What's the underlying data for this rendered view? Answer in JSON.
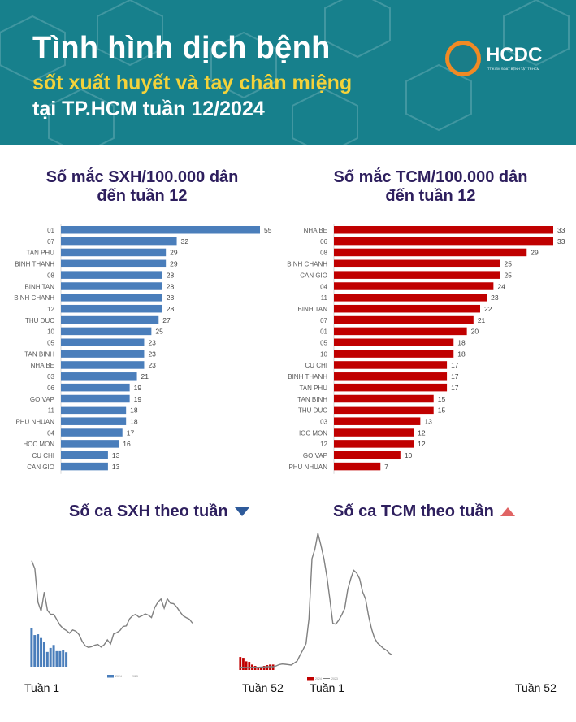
{
  "header": {
    "title": "Tình hình dịch bệnh",
    "subtitle": "sốt xuất huyết và tay chân miệng",
    "subtitle2": "tại TP.HCM tuần 12/2024",
    "logo_text": "HCDC",
    "logo_sub": "TT KIỂM SOÁT BỆNH TẬT TP.HCM"
  },
  "colors": {
    "header_bg": "#17808c",
    "sxh": "#4a7ebb",
    "tcm": "#c00000",
    "line_2023": "#808080",
    "title": "#2e1f5e",
    "yellow": "#f3d23a"
  },
  "sections": {
    "sxh_weekly": "Số ca SXH theo tuần",
    "tcm_weekly": "Số ca TCM theo tuần",
    "sxh_trend": "down",
    "tcm_trend": "up",
    "week_start": "Tuần 1",
    "week_end": "Tuần 52"
  },
  "chart_data": [
    {
      "type": "bar",
      "orientation": "horizontal",
      "title": "Số mắc SXH/100.000 dân",
      "subtitle": "đến tuần 12",
      "color": "#4a7ebb",
      "categories": [
        "01",
        "07",
        "TAN PHU",
        "BINH THANH",
        "08",
        "BINH TAN",
        "BINH CHANH",
        "12",
        "THU DUC",
        "10",
        "05",
        "TAN BINH",
        "NHA BE",
        "03",
        "06",
        "GO VAP",
        "11",
        "PHU NHUAN",
        "04",
        "HOC MON",
        "CU CHI",
        "CAN GIO"
      ],
      "values": [
        55,
        32,
        29,
        29,
        28,
        28,
        28,
        28,
        27,
        25,
        23,
        23,
        23,
        21,
        19,
        19,
        18,
        18,
        17,
        16,
        13,
        13
      ],
      "xlim": [
        0,
        55
      ]
    },
    {
      "type": "bar",
      "orientation": "horizontal",
      "title": "Số mắc TCM/100.000 dân",
      "subtitle": "đến tuần 12",
      "color": "#c00000",
      "categories": [
        "NHA BE",
        "06",
        "08",
        "BINH CHANH",
        "CAN GIO",
        "04",
        "11",
        "BINH TAN",
        "07",
        "01",
        "05",
        "10",
        "CU CHI",
        "BINH THANH",
        "TAN PHU",
        "TAN BINH",
        "THU DUC",
        "03",
        "HOC MON",
        "12",
        "GO VAP",
        "PHU NHUAN"
      ],
      "values": [
        33,
        33,
        29,
        25,
        25,
        24,
        23,
        22,
        21,
        20,
        18,
        18,
        17,
        17,
        17,
        15,
        15,
        13,
        12,
        12,
        10,
        7
      ],
      "xlim": [
        0,
        33
      ]
    },
    {
      "type": "bar+line",
      "title": "Số ca SXH theo tuần",
      "legend": [
        "2024",
        "2023"
      ],
      "legend_position": "bottom",
      "ylim": [
        0,
        400
      ],
      "series": [
        {
          "name": "2024",
          "type": "bar",
          "color": "#4a7ebb",
          "values": [
            143,
            118,
            121,
            107,
            93,
            55,
            70,
            81,
            58,
            58,
            62,
            54
          ]
        },
        {
          "name": "2023",
          "type": "line",
          "color": "#808080",
          "values": [
            395,
            365,
            240,
            207,
            278,
            210,
            195,
            195,
            175,
            155,
            142,
            135,
            125,
            137,
            132,
            120,
            95,
            78,
            72,
            75,
            80,
            83,
            73,
            82,
            100,
            85,
            122,
            127,
            135,
            150,
            152,
            178,
            190,
            195,
            185,
            190,
            197,
            192,
            183,
            220,
            240,
            252,
            218,
            253,
            237,
            235,
            222,
            205,
            190,
            183,
            177,
            162
          ]
        }
      ]
    },
    {
      "type": "bar+line",
      "title": "Số ca TCM theo tuần",
      "legend": [
        "2024",
        "2023"
      ],
      "legend_position": "bottom",
      "ylim": [
        0,
        510
      ],
      "series": [
        {
          "name": "2024",
          "type": "bar",
          "color": "#c00000",
          "values": [
            48,
            45,
            32,
            30,
            20,
            15,
            11,
            12,
            15,
            18,
            20,
            20
          ]
        },
        {
          "name": "2023",
          "type": "line",
          "color": "#808080",
          "values": [
            10,
            10,
            9,
            9,
            10,
            10,
            10,
            11,
            11,
            12,
            12,
            12,
            15,
            20,
            22,
            21,
            20,
            18,
            25,
            33,
            55,
            75,
            98,
            190,
            413,
            450,
            508,
            463,
            413,
            348,
            263,
            173,
            170,
            185,
            205,
            228,
            298,
            338,
            370,
            360,
            338,
            290,
            263,
            200,
            153,
            118,
            100,
            90,
            80,
            73,
            62,
            55
          ]
        }
      ]
    }
  ]
}
